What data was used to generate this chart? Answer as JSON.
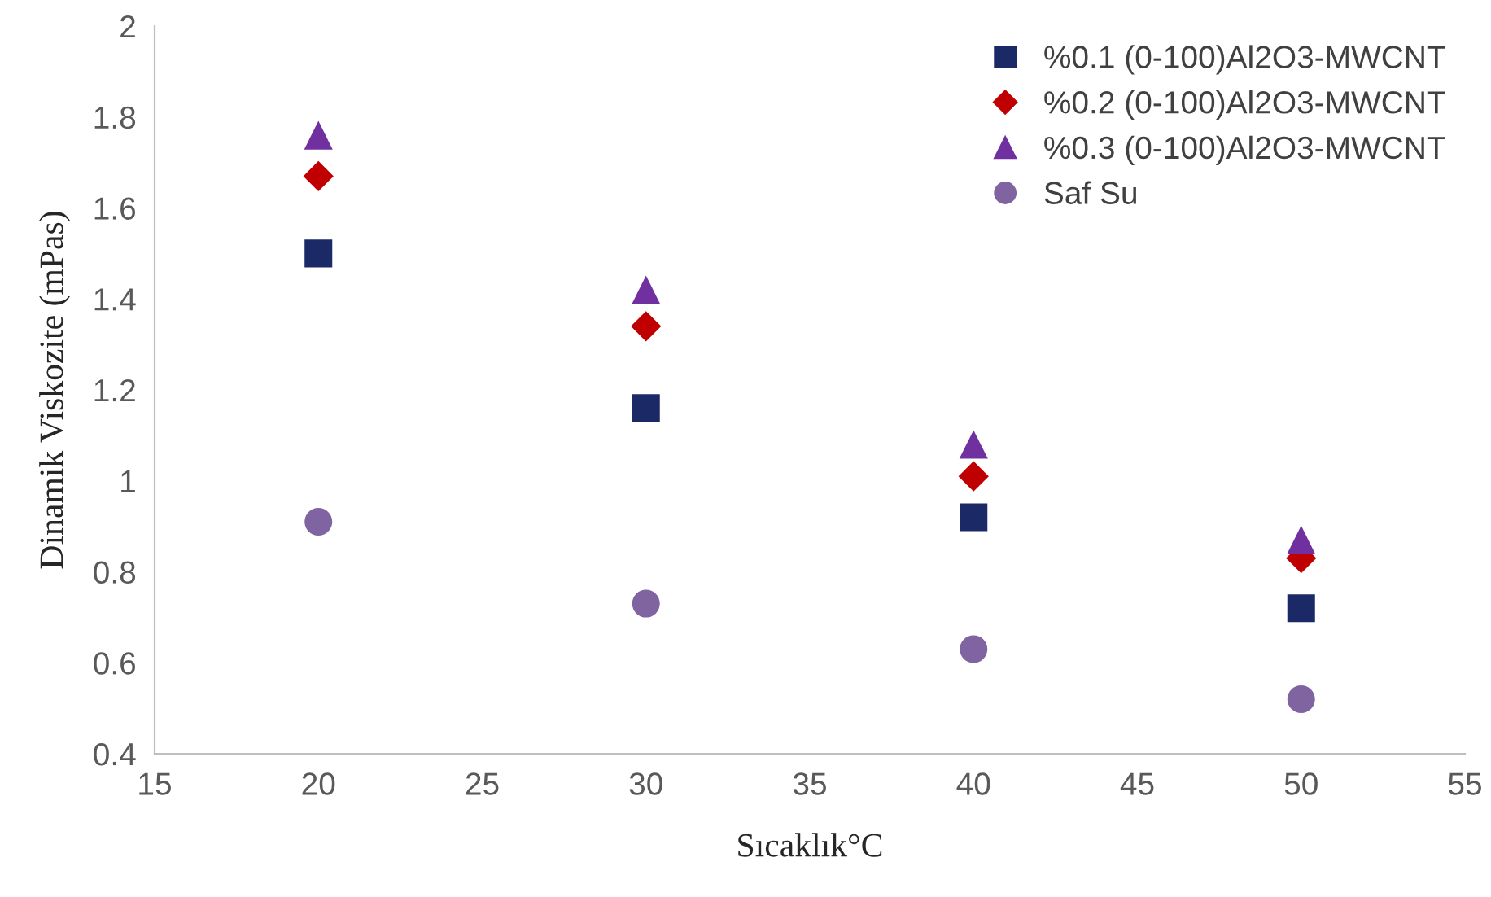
{
  "chart_data": {
    "type": "scatter",
    "xlabel": "Sıcaklık°C",
    "ylabel": "Dinamik Viskozite (mPas)",
    "x": [
      20,
      30,
      40,
      50
    ],
    "series": [
      {
        "name": "%0.1 (0-100)Al2O3-MWCNT",
        "color": "#1b2a66",
        "marker": "square",
        "values": [
          1.5,
          1.16,
          0.92,
          0.72
        ]
      },
      {
        "name": "%0.2 (0-100)Al2O3-MWCNT",
        "color": "#c00000",
        "marker": "diamond",
        "values": [
          1.67,
          1.34,
          1.01,
          0.83
        ]
      },
      {
        "name": "%0.3 (0-100)Al2O3-MWCNT",
        "color": "#7030a0",
        "marker": "triangle",
        "values": [
          1.76,
          1.42,
          1.08,
          0.87
        ]
      },
      {
        "name": "Saf Su",
        "color": "#8064a2",
        "marker": "circle",
        "values": [
          0.91,
          0.73,
          0.63,
          0.52
        ]
      }
    ],
    "xlim": [
      15,
      55
    ],
    "xticks": [
      15,
      20,
      25,
      30,
      35,
      40,
      45,
      50,
      55
    ],
    "ylim": [
      0.4,
      2
    ],
    "yticks": [
      0.4,
      0.6,
      0.8,
      1,
      1.2,
      1.4,
      1.6,
      1.8,
      2
    ],
    "grid": false,
    "legend": "top right"
  }
}
